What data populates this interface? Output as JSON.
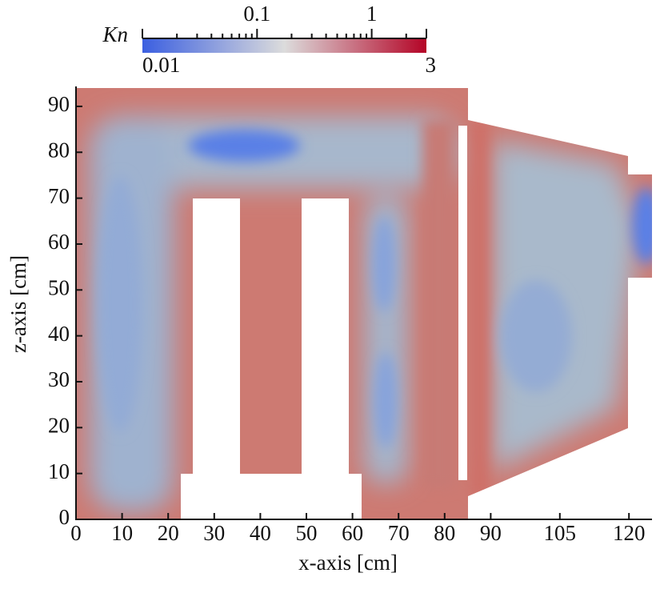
{
  "chart_data": {
    "type": "heatmap",
    "xlabel": "x-axis [cm]",
    "ylabel": "z-axis [cm]",
    "xlim": [
      0,
      125
    ],
    "xticks": [
      0,
      10,
      20,
      30,
      40,
      50,
      60,
      70,
      80,
      90,
      105,
      120
    ],
    "ylim": [
      0,
      94
    ],
    "yticks": [
      0,
      10,
      20,
      30,
      40,
      50,
      60,
      70,
      80,
      90
    ],
    "colorbar": {
      "label": "Kn",
      "scale": "log",
      "lim": [
        0.01,
        3
      ],
      "ticks": [
        0.01,
        0.1,
        1,
        3
      ],
      "minor_ticks": [
        0.02,
        0.03,
        0.04,
        0.05,
        0.06,
        0.07,
        0.08,
        0.09,
        0.2,
        0.3,
        0.4,
        0.5,
        0.6,
        0.7,
        0.8,
        0.9,
        2
      ],
      "colors": [
        "#3b5fe0",
        "#dcdcdc",
        "#b40426"
      ]
    }
  }
}
